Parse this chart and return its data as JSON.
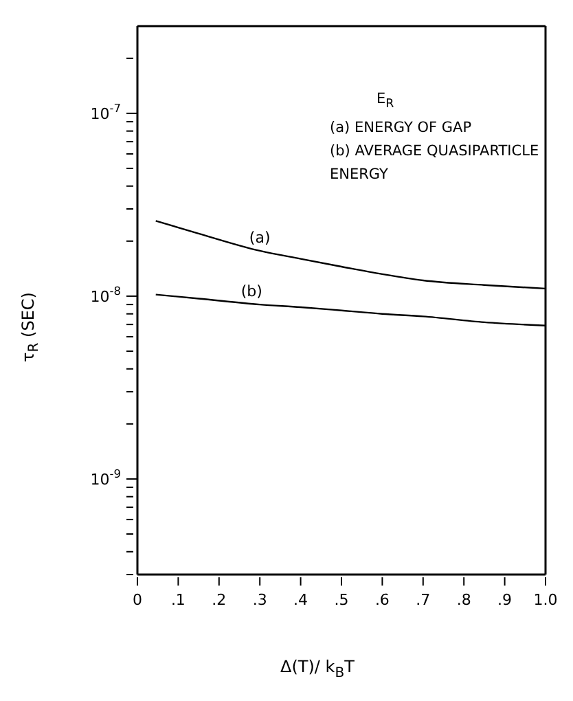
{
  "chart_data": {
    "type": "line",
    "xlabel": "Δ(T)/ k$_{B}$T",
    "ylabel": "τ$_{R}$ (SEC)",
    "annotations": [
      "E$_{R}$",
      "(a) ENERGY OF GAP",
      "(b) AVERAGE QUASIPARTICLE ENERGY",
      {
        "text": "(a)",
        "x": 0.3,
        "y": 1.77e-08
      },
      {
        "text": "(b)",
        "x": 0.28,
        "y": 9e-09
      }
    ],
    "series": [
      {
        "color": "#000000",
        "x": [
          0.045,
          0.15,
          0.3,
          0.4,
          0.5,
          0.6,
          0.7,
          0.85,
          1.0
        ],
        "values": [
          2.58e-08,
          2.2e-08,
          1.77e-08,
          1.6e-08,
          1.45e-08,
          1.32e-08,
          1.22e-08,
          1.15e-08,
          1.1e-08
        ]
      },
      {
        "color": "#000000",
        "x": [
          0.045,
          0.15,
          0.3,
          0.4,
          0.5,
          0.6,
          0.7,
          0.85,
          1.0
        ],
        "values": [
          1.02e-08,
          9.7e-09,
          9e-09,
          8.7e-09,
          8.35e-09,
          8e-09,
          7.75e-09,
          7.2e-09,
          6.9e-09
        ]
      }
    ],
    "log": "y",
    "xlim": [
      0,
      1
    ],
    "xticks": [
      0,
      {
        "value": 0.1,
        "label": ".1"
      },
      {
        "value": 0.2,
        "label": ".2"
      },
      {
        "value": 0.3,
        "label": ".3"
      },
      {
        "value": 0.4,
        "label": ".4"
      },
      {
        "value": 0.5,
        "label": ".5"
      },
      {
        "value": 0.6,
        "label": ".6"
      },
      {
        "value": 0.7,
        "label": ".7"
      },
      {
        "value": 0.8,
        "label": ".8"
      },
      {
        "value": 0.9,
        "label": ".9"
      },
      {
        "value": 1,
        "label": "1.0"
      }
    ],
    "ylim": [
      3e-10,
      3e-07
    ],
    "yticks": [
      {
        "value": 3e-10,
        "label": null
      },
      {
        "value": 4e-10,
        "label": null
      },
      {
        "value": 5e-10,
        "label": null
      },
      {
        "value": 6e-10,
        "label": null
      },
      {
        "value": 7e-10,
        "label": null
      },
      {
        "value": 8e-10,
        "label": null
      },
      {
        "value": 9e-10,
        "label": null
      },
      {
        "value": 1e-09,
        "label": "10$^{-9}$"
      },
      {
        "value": 2e-09,
        "label": null
      },
      {
        "value": 3e-09,
        "label": null
      },
      {
        "value": 4e-09,
        "label": null
      },
      {
        "value": 5e-09,
        "label": null
      },
      {
        "value": 6e-09,
        "label": null
      },
      {
        "value": 7e-09,
        "label": null
      },
      {
        "value": 8e-09,
        "label": null
      },
      {
        "value": 9e-09,
        "label": null
      },
      {
        "value": 1e-08,
        "label": "10$^{-8}$"
      },
      {
        "value": 2e-08,
        "label": null
      },
      {
        "value": 3e-08,
        "label": null
      },
      {
        "value": 4e-08,
        "label": null
      },
      {
        "value": 5e-08,
        "label": null
      },
      {
        "value": 6e-08,
        "label": null
      },
      {
        "value": 7e-08,
        "label": null
      },
      {
        "value": 8e-08,
        "label": null
      },
      {
        "value": 9e-08,
        "label": null
      },
      {
        "value": 1e-07,
        "label": "10$^{-7}$"
      },
      {
        "value": 2e-07,
        "label": null
      }
    ],
    "marker": "none",
    "line_style": "solid"
  }
}
